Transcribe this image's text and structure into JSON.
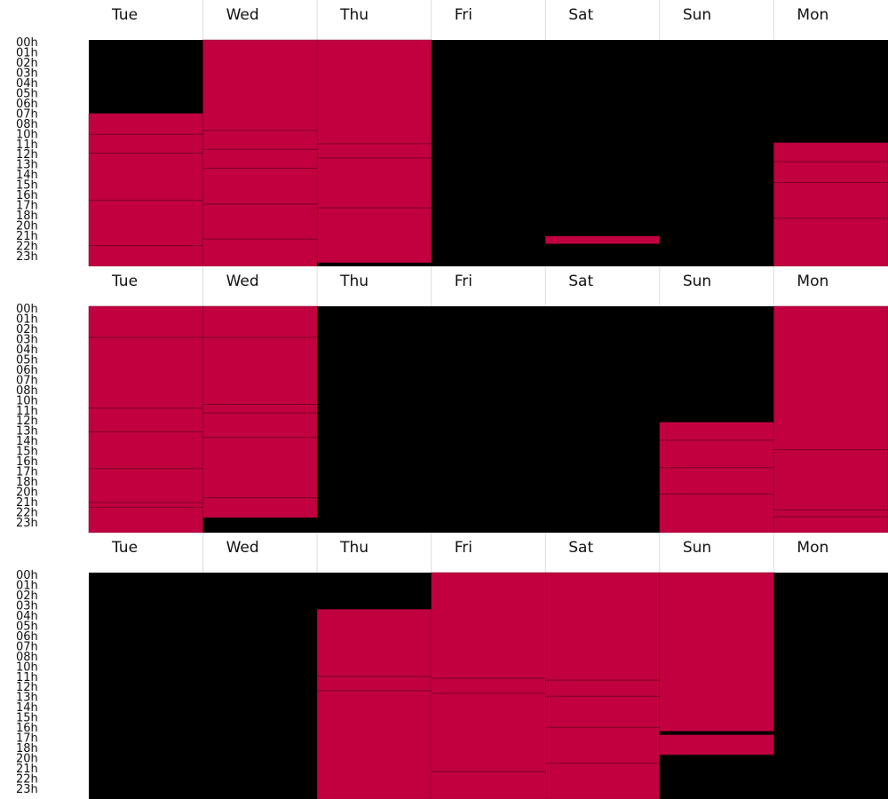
{
  "chart_data": {
    "type": "heatmap",
    "days": [
      "Tue",
      "Wed",
      "Thu",
      "Fri",
      "Sat",
      "Sun",
      "Mon"
    ],
    "hour_labels": [
      "00h",
      "01h",
      "02h",
      "03h",
      "04h",
      "05h",
      "06h",
      "07h",
      "08h",
      "10h",
      "11h",
      "12h",
      "13h",
      "14h",
      "15h",
      "16h",
      "17h",
      "18h",
      "20h",
      "21h",
      "22h",
      "23h"
    ],
    "day_range_hours": [
      0,
      24
    ],
    "colors": {
      "active": "#c20040",
      "inactive": "#000000",
      "divider": "#7a0028",
      "background": "#ffffff",
      "header_border": "#dddddd"
    },
    "weeks": [
      {
        "days": [
          {
            "day": "Tue",
            "active": [
              [
                7.8,
                24
              ]
            ],
            "inactive": [
              [
                0,
                7.8
              ]
            ],
            "splits": [
              10,
              12,
              17,
              21.8
            ]
          },
          {
            "day": "Wed",
            "active": [
              [
                0,
                24
              ]
            ],
            "inactive": [],
            "splits": [
              9.6,
              11.6,
              13.6,
              17.4,
              21.1
            ]
          },
          {
            "day": "Thu",
            "active": [
              [
                0,
                23.6
              ]
            ],
            "inactive": [
              [
                23.6,
                24
              ]
            ],
            "splits": [
              11.0,
              12.5,
              17.8
            ]
          },
          {
            "day": "Fri",
            "active": [],
            "inactive": [
              [
                0,
                24
              ]
            ],
            "splits": []
          },
          {
            "day": "Sat",
            "active": [
              [
                20.8,
                21.6
              ]
            ],
            "inactive": [
              [
                0,
                20.8
              ],
              [
                21.6,
                24
              ]
            ],
            "splits": []
          },
          {
            "day": "Sun",
            "active": [],
            "inactive": [
              [
                0,
                24
              ]
            ],
            "splits": []
          },
          {
            "day": "Mon",
            "active": [
              [
                10.9,
                24
              ]
            ],
            "inactive": [
              [
                0,
                10.9
              ]
            ],
            "splits": [
              12.9,
              15.1,
              18.9
            ]
          }
        ]
      },
      {
        "days": [
          {
            "day": "Tue",
            "active": [
              [
                0,
                24
              ]
            ],
            "inactive": [],
            "splits": [
              3.3,
              10.8,
              13.3,
              17.2,
              20.8,
              21.3
            ]
          },
          {
            "day": "Wed",
            "active": [
              [
                0,
                22.4
              ]
            ],
            "inactive": [
              [
                22.4,
                24
              ]
            ],
            "splits": [
              3.3,
              10.4,
              11.3,
              13.9,
              20.3
            ]
          },
          {
            "day": "Thu",
            "active": [],
            "inactive": [
              [
                0,
                24
              ]
            ],
            "splits": []
          },
          {
            "day": "Fri",
            "active": [],
            "inactive": [
              [
                0,
                24
              ]
            ],
            "splits": []
          },
          {
            "day": "Sat",
            "active": [],
            "inactive": [
              [
                0,
                24
              ]
            ],
            "splits": []
          },
          {
            "day": "Sun",
            "active": [
              [
                12.3,
                24
              ]
            ],
            "inactive": [
              [
                0,
                12.3
              ]
            ],
            "splits": [
              14.2,
              17.1,
              19.9
            ]
          },
          {
            "day": "Mon",
            "active": [
              [
                0,
                24
              ]
            ],
            "inactive": [],
            "splits": [
              15.2,
              21.6,
              22.3
            ]
          }
        ]
      },
      {
        "days": [
          {
            "day": "Tue",
            "active": [],
            "inactive": [
              [
                0,
                24
              ]
            ],
            "splits": []
          },
          {
            "day": "Wed",
            "active": [],
            "inactive": [
              [
                0,
                24
              ]
            ],
            "splits": []
          },
          {
            "day": "Thu",
            "active": [
              [
                3.9,
                24
              ]
            ],
            "inactive": [
              [
                0,
                3.9
              ]
            ],
            "splits": [
              11.0,
              12.5
            ]
          },
          {
            "day": "Fri",
            "active": [
              [
                0,
                24
              ]
            ],
            "inactive": [],
            "splits": [
              11.2,
              12.8,
              21.1
            ]
          },
          {
            "day": "Sat",
            "active": [
              [
                0,
                24
              ]
            ],
            "inactive": [],
            "splits": [
              11.4,
              13.1,
              16.4,
              20.2
            ]
          },
          {
            "day": "Sun",
            "active": [
              [
                0,
                16.8
              ],
              [
                17.2,
                19.3
              ]
            ],
            "inactive": [
              [
                16.8,
                17.2
              ],
              [
                19.3,
                24
              ]
            ],
            "splits": []
          },
          {
            "day": "Mon",
            "active": [],
            "inactive": [
              [
                0,
                24
              ]
            ],
            "splits": []
          }
        ]
      }
    ]
  }
}
